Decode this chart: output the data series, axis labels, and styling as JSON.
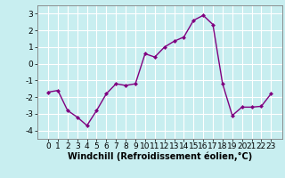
{
  "x": [
    0,
    1,
    2,
    3,
    4,
    5,
    6,
    7,
    8,
    9,
    10,
    11,
    12,
    13,
    14,
    15,
    16,
    17,
    18,
    19,
    20,
    21,
    22,
    23
  ],
  "y": [
    -1.7,
    -1.6,
    -2.8,
    -3.2,
    -3.7,
    -2.8,
    -1.8,
    -1.2,
    -1.3,
    -1.2,
    0.6,
    0.4,
    1.0,
    1.35,
    1.6,
    2.6,
    2.9,
    2.35,
    -1.2,
    -3.1,
    -2.6,
    -2.6,
    -2.55,
    -1.8
  ],
  "line_color": "#800080",
  "marker": "D",
  "marker_size": 2.5,
  "bg_color": "#c8eef0",
  "grid_color": "#ffffff",
  "xlabel": "Windchill (Refroidissement éolien,°C)",
  "xlabel_fontsize": 7,
  "tick_fontsize": 6.5,
  "ylim": [
    -4.5,
    3.5
  ],
  "yticks": [
    -4,
    -3,
    -2,
    -1,
    0,
    1,
    2,
    3
  ],
  "xticks": [
    0,
    1,
    2,
    3,
    4,
    5,
    6,
    7,
    8,
    9,
    10,
    11,
    12,
    13,
    14,
    15,
    16,
    17,
    18,
    19,
    20,
    21,
    22,
    23
  ],
  "line_width": 1.0,
  "spine_color": "#808080"
}
